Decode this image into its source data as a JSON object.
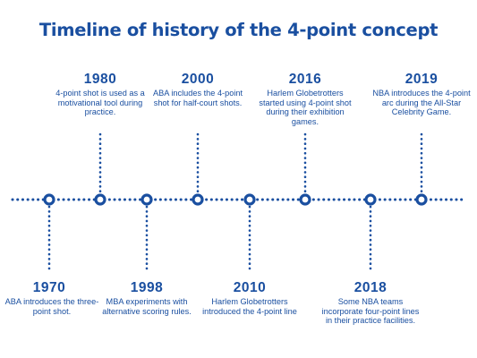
{
  "title": "Timeline of history of the 4-point concept",
  "colors": {
    "primary": "#1a4fa0",
    "text": "#1a4fa0",
    "background": "#ffffff"
  },
  "events": [
    {
      "year": "1970",
      "text": "ABA introduces the three-point shot.",
      "side": "below"
    },
    {
      "year": "1980",
      "text": "4-point shot is used as a motivational tool during practice.",
      "side": "above"
    },
    {
      "year": "1998",
      "text": "MBA experiments with alternative scoring rules.",
      "side": "below"
    },
    {
      "year": "2000",
      "text": "ABA includes the 4-point shot for half-court shots.",
      "side": "above"
    },
    {
      "year": "2010",
      "text": "Harlem Globetrotters introduced the 4-point line",
      "side": "below"
    },
    {
      "year": "2016",
      "text": "Harlem Globetrotters started using 4-point shot during their exhibition games.",
      "side": "above"
    },
    {
      "year": "2018",
      "text": "Some NBA teams incorporate four-point lines in their practice facilities.",
      "side": "below"
    },
    {
      "year": "2019",
      "text": "NBA introduces the 4-point arc during the All-Star Celebrity Game.",
      "side": "above"
    }
  ]
}
